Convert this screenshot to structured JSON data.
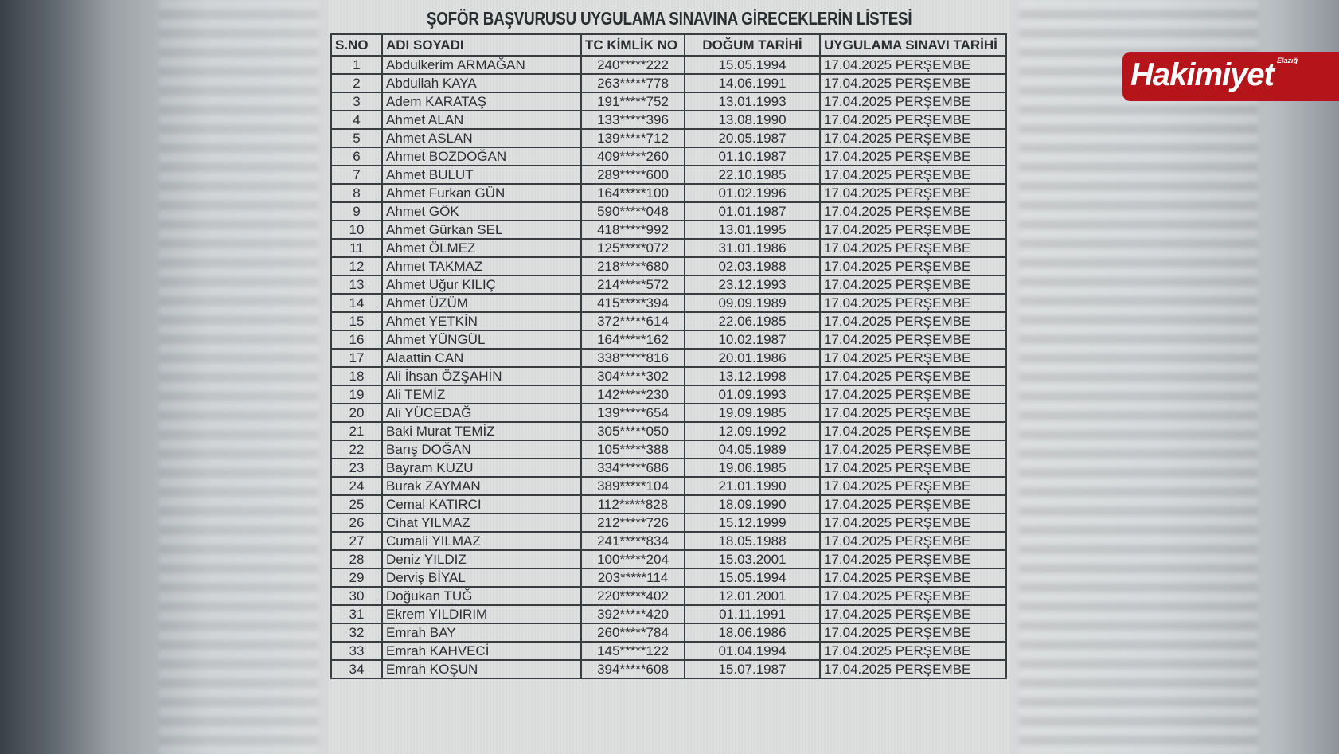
{
  "title": "ŞOFÖR BAŞVURUSU UYGULAMA SINAVINA GİRECEKLERİN LİSTESİ",
  "columns": [
    "S.NO",
    "ADI SOYADI",
    "TC KİMLİK NO",
    "DOĞUM TARİHİ",
    "UYGULAMA SINAVI TARİHİ"
  ],
  "rows": [
    [
      "1",
      "Abdulkerim ARMAĞAN",
      "240*****222",
      "15.05.1994",
      "17.04.2025 PERŞEMBE"
    ],
    [
      "2",
      "Abdullah KAYA",
      "263*****778",
      "14.06.1991",
      "17.04.2025 PERŞEMBE"
    ],
    [
      "3",
      "Adem KARATAŞ",
      "191*****752",
      "13.01.1993",
      "17.04.2025 PERŞEMBE"
    ],
    [
      "4",
      "Ahmet ALAN",
      "133*****396",
      "13.08.1990",
      "17.04.2025 PERŞEMBE"
    ],
    [
      "5",
      "Ahmet ASLAN",
      "139*****712",
      "20.05.1987",
      "17.04.2025 PERŞEMBE"
    ],
    [
      "6",
      "Ahmet BOZDOĞAN",
      "409*****260",
      "01.10.1987",
      "17.04.2025 PERŞEMBE"
    ],
    [
      "7",
      "Ahmet BULUT",
      "289*****600",
      "22.10.1985",
      "17.04.2025 PERŞEMBE"
    ],
    [
      "8",
      "Ahmet Furkan GÜN",
      "164*****100",
      "01.02.1996",
      "17.04.2025 PERŞEMBE"
    ],
    [
      "9",
      "Ahmet GÖK",
      "590*****048",
      "01.01.1987",
      "17.04.2025 PERŞEMBE"
    ],
    [
      "10",
      "Ahmet Gürkan SEL",
      "418*****992",
      "13.01.1995",
      "17.04.2025 PERŞEMBE"
    ],
    [
      "11",
      "Ahmet ÖLMEZ",
      "125*****072",
      "31.01.1986",
      "17.04.2025 PERŞEMBE"
    ],
    [
      "12",
      "Ahmet TAKMAZ",
      "218*****680",
      "02.03.1988",
      "17.04.2025 PERŞEMBE"
    ],
    [
      "13",
      "Ahmet Uğur KILIÇ",
      "214*****572",
      "23.12.1993",
      "17.04.2025 PERŞEMBE"
    ],
    [
      "14",
      "Ahmet ÜZÜM",
      "415*****394",
      "09.09.1989",
      "17.04.2025 PERŞEMBE"
    ],
    [
      "15",
      "Ahmet YETKİN",
      "372*****614",
      "22.06.1985",
      "17.04.2025 PERŞEMBE"
    ],
    [
      "16",
      "Ahmet YÜNGÜL",
      "164*****162",
      "10.02.1987",
      "17.04.2025 PERŞEMBE"
    ],
    [
      "17",
      "Alaattin CAN",
      "338*****816",
      "20.01.1986",
      "17.04.2025 PERŞEMBE"
    ],
    [
      "18",
      "Ali İhsan ÖZŞAHİN",
      "304*****302",
      "13.12.1998",
      "17.04.2025 PERŞEMBE"
    ],
    [
      "19",
      "Ali TEMİZ",
      "142*****230",
      "01.09.1993",
      "17.04.2025 PERŞEMBE"
    ],
    [
      "20",
      "Ali YÜCEDAĞ",
      "139*****654",
      "19.09.1985",
      "17.04.2025 PERŞEMBE"
    ],
    [
      "21",
      "Baki Murat TEMİZ",
      "305*****050",
      "12.09.1992",
      "17.04.2025 PERŞEMBE"
    ],
    [
      "22",
      "Barış DOĞAN",
      "105*****388",
      "04.05.1989",
      "17.04.2025 PERŞEMBE"
    ],
    [
      "23",
      "Bayram KUZU",
      "334*****686",
      "19.06.1985",
      "17.04.2025 PERŞEMBE"
    ],
    [
      "24",
      "Burak ZAYMAN",
      "389*****104",
      "21.01.1990",
      "17.04.2025 PERŞEMBE"
    ],
    [
      "25",
      "Cemal KATIRCI",
      "112*****828",
      "18.09.1990",
      "17.04.2025 PERŞEMBE"
    ],
    [
      "26",
      "Cihat YILMAZ",
      "212*****726",
      "15.12.1999",
      "17.04.2025 PERŞEMBE"
    ],
    [
      "27",
      "Cumali YILMAZ",
      "241*****834",
      "18.05.1988",
      "17.04.2025 PERŞEMBE"
    ],
    [
      "28",
      "Deniz YILDIZ",
      "100*****204",
      "15.03.2001",
      "17.04.2025 PERŞEMBE"
    ],
    [
      "29",
      "Derviş BİYAL",
      "203*****114",
      "15.05.1994",
      "17.04.2025 PERŞEMBE"
    ],
    [
      "30",
      "Doğukan TUĞ",
      "220*****402",
      "12.01.2001",
      "17.04.2025 PERŞEMBE"
    ],
    [
      "31",
      "Ekrem YILDIRIM",
      "392*****420",
      "01.11.1991",
      "17.04.2025 PERŞEMBE"
    ],
    [
      "32",
      "Emrah BAY",
      "260*****784",
      "18.06.1986",
      "17.04.2025 PERŞEMBE"
    ],
    [
      "33",
      "Emrah KAHVECİ",
      "145*****122",
      "01.04.1994",
      "17.04.2025 PERŞEMBE"
    ],
    [
      "34",
      "Emrah KOŞUN",
      "394*****608",
      "15.07.1987",
      "17.04.2025 PERŞEMBE"
    ]
  ],
  "logo": {
    "main": "Hakimiyet",
    "sub": "Elazığ",
    "color": "#b4141a"
  }
}
